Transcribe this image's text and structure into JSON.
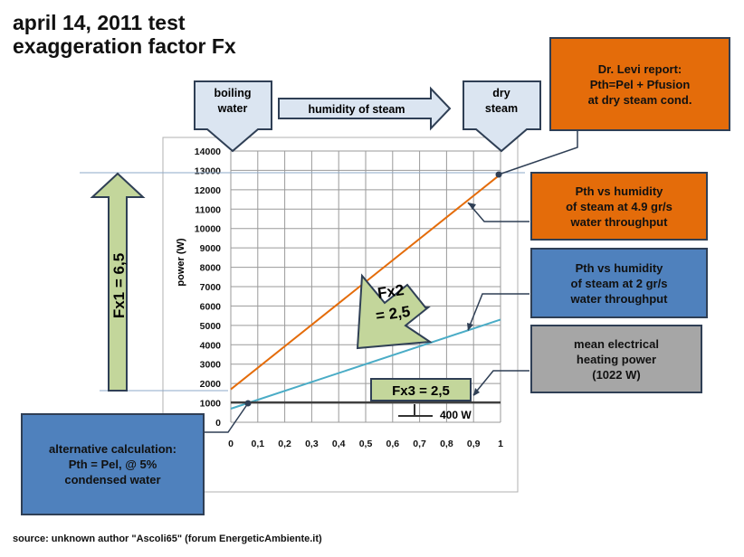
{
  "title_line1": "april 14, 2011 test",
  "title_line2": "exaggeration factor Fx",
  "source": "source: unknown author \"Ascoli65\" (forum EnergeticAmbiente.it)",
  "header": {
    "boiling": "boiling\nwater",
    "humidity": "humidity of steam",
    "dry": "dry\nsteam"
  },
  "callouts": {
    "levi": "Dr. Levi report:\nPth=Pel + Pfusion\nat dry steam cond.",
    "pth49": "Pth vs humidity\nof steam at 4.9 gr/s\nwater throughput",
    "pth2": "Pth vs humidity\nof steam at 2 gr/s\nwater throughput",
    "mean": "mean electrical\nheating power\n(1022 W)",
    "alt": "alternative calculation:\nPth = Pel, @ 5%\ncondensed water"
  },
  "factors": {
    "fx1": "Fx1 = 6,5",
    "fx2_a": "Fx2",
    "fx2_b": "= 2,5",
    "fx3": "Fx3 = 2,5",
    "w400": "400 W"
  },
  "colors": {
    "orange": "#e46c0a",
    "blue": "#4f81bd",
    "teal": "#4aacc6",
    "green": "#c3d69b",
    "arrowBox": "#dbe5f1"
  },
  "chart_data": {
    "type": "line",
    "ylabel": "power (W)",
    "xlabel": "",
    "xlim": [
      0,
      1
    ],
    "ylim": [
      0,
      14000
    ],
    "x_ticks": [
      "0",
      "0,1",
      "0,2",
      "0,3",
      "0,4",
      "0,5",
      "0,6",
      "0,7",
      "0,8",
      "0,9",
      "1"
    ],
    "y_ticks": [
      "0",
      "1000",
      "2000",
      "3000",
      "4000",
      "5000",
      "6000",
      "7000",
      "8000",
      "9000",
      "10000",
      "11000",
      "12000",
      "13000",
      "14000"
    ],
    "grid": true,
    "series": [
      {
        "x": [
          0,
          1
        ],
        "y": [
          1700,
          12800
        ],
        "color": "#e46c0a"
      },
      {
        "x": [
          0,
          1
        ],
        "y": [
          700,
          5300
        ],
        "color": "#4aacc6"
      },
      {
        "x": [
          0,
          1
        ],
        "y": [
          1022,
          1022
        ],
        "color": "#404040"
      }
    ]
  }
}
